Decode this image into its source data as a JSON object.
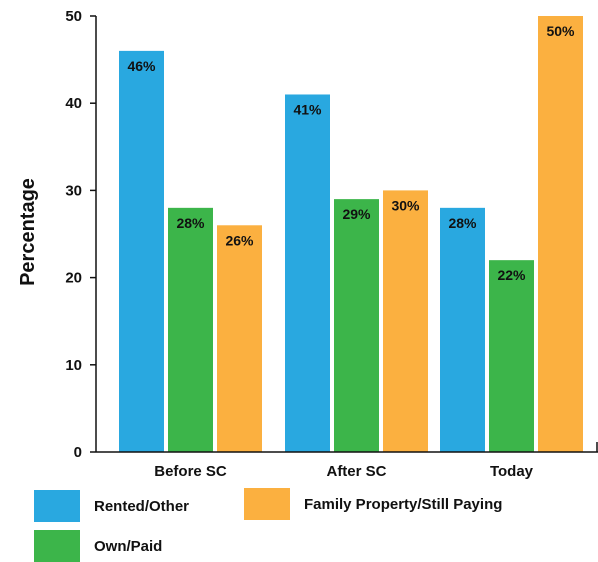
{
  "chart_data": {
    "type": "bar",
    "ylabel": "Percentage",
    "xlabel": "",
    "title": "",
    "ylim": [
      0,
      50
    ],
    "yticks": [
      "0",
      "10",
      "20",
      "30",
      "40",
      "50"
    ],
    "categories": [
      "Before SC",
      "After SC",
      "Today"
    ],
    "series": [
      {
        "name": "Rented/Other",
        "color": "#29a8e0",
        "values": [
          46,
          41,
          28
        ],
        "labels": [
          "46%",
          "41%",
          "28%"
        ]
      },
      {
        "name": "Own/Paid",
        "color": "#3cb54a",
        "values": [
          28,
          29,
          22
        ],
        "labels": [
          "28%",
          "29%",
          "22%"
        ]
      },
      {
        "name": "Family Property/Still Paying",
        "color": "#fbb040",
        "values": [
          26,
          30,
          50
        ],
        "labels": [
          "26%",
          "30%",
          "50%"
        ]
      }
    ],
    "legend_position": "bottom",
    "grid": false
  },
  "legend": {
    "rented": "Rented/Other",
    "family": "Family Property/Still Paying",
    "own": "Own/Paid"
  }
}
